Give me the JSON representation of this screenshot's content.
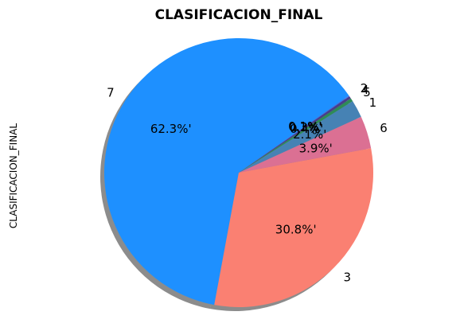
{
  "chart_data": {
    "type": "pie",
    "title": "CLASIFICACION_FINAL",
    "ylabel": "CLASIFICACION_FINAL",
    "start_angle_deg": 35,
    "counterclockwise": true,
    "shadow": true,
    "slices": [
      {
        "label": "7",
        "value": 62.3,
        "pct_text": "62.3%'",
        "color": "#1e90ff"
      },
      {
        "label": "3",
        "value": 30.8,
        "pct_text": "30.8%'",
        "color": "#fa8072"
      },
      {
        "label": "6",
        "value": 3.9,
        "pct_text": "3.9%'",
        "color": "#db7093"
      },
      {
        "label": "1",
        "value": 2.1,
        "pct_text": "2.1%'",
        "color": "#4682b4"
      },
      {
        "label": "5",
        "value": 0.4,
        "pct_text": "0.4%'",
        "color": "#2e8b57"
      },
      {
        "label": "4",
        "value": 0.3,
        "pct_text": "0.3%'",
        "color": "#483d8b"
      },
      {
        "label": "2",
        "value": 0.1,
        "pct_text": "0.1%'",
        "color": "#4169e1"
      }
    ]
  }
}
